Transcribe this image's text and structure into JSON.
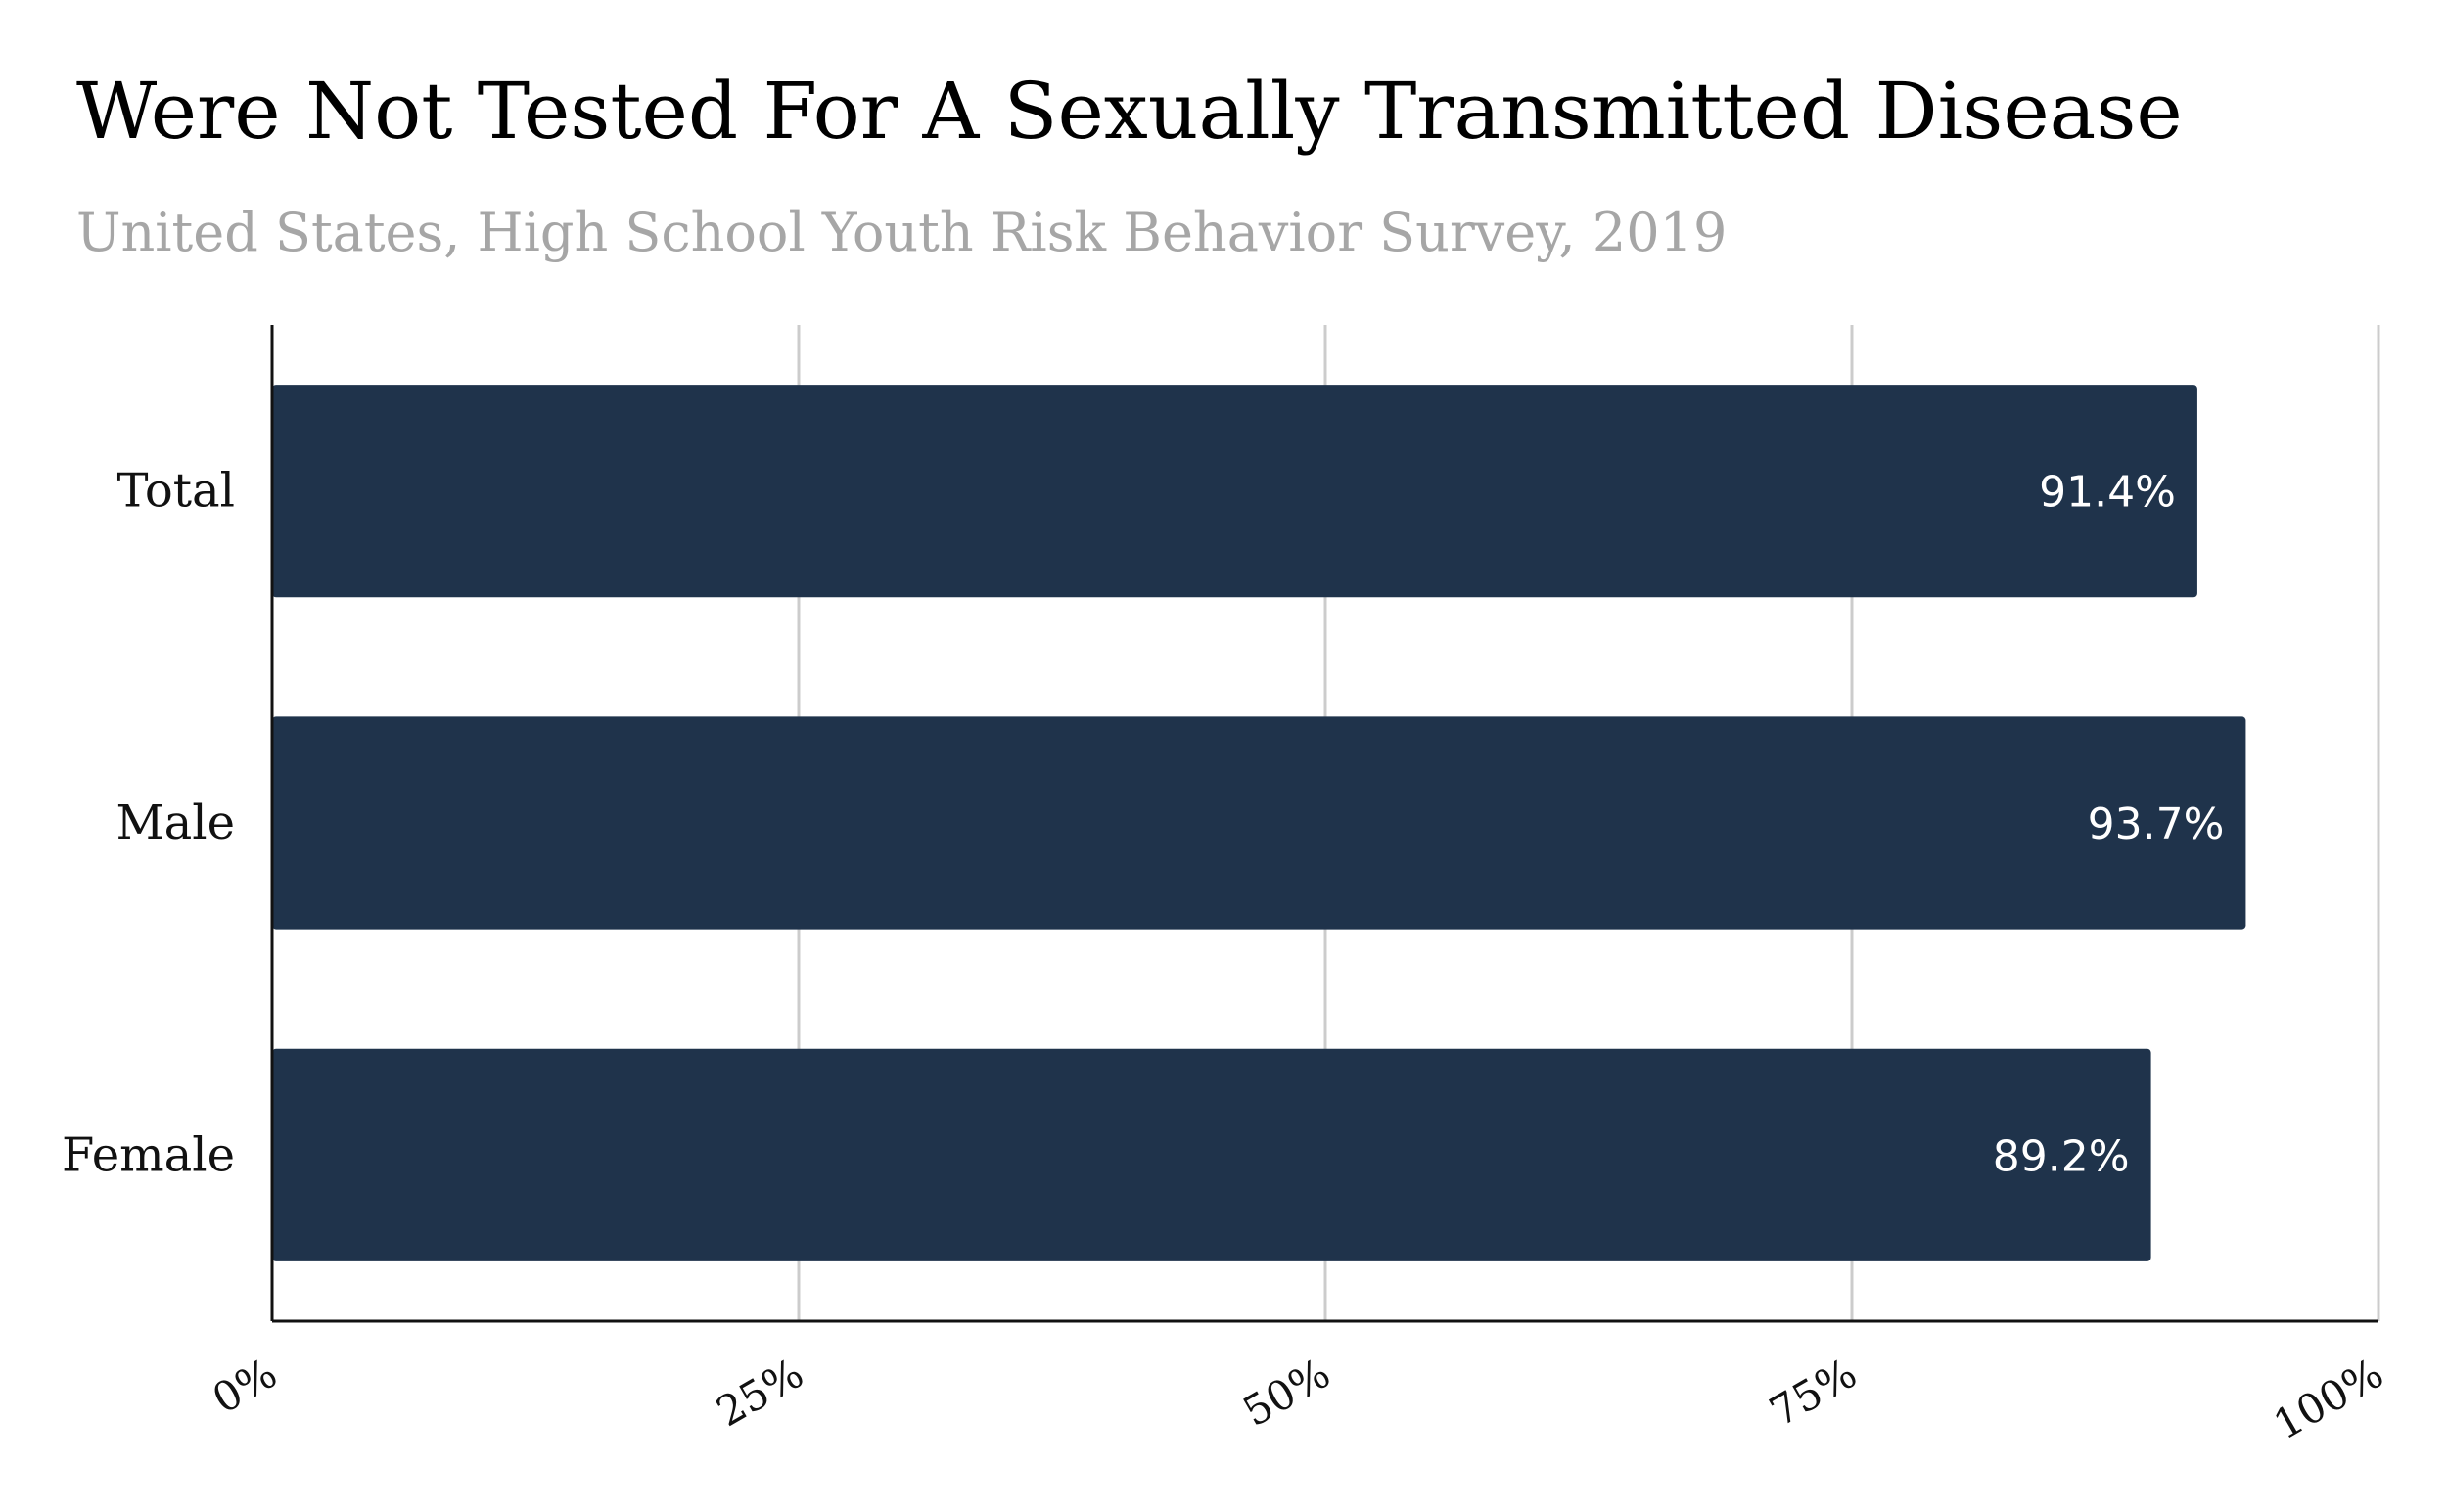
{
  "chart_data": {
    "type": "bar",
    "orientation": "horizontal",
    "title": "Were Not Tested For A Sexually Transmitted Disease",
    "subtitle": "United States, High School Youth Risk Behavior Survey, 2019",
    "categories": [
      "Total",
      "Male",
      "Female"
    ],
    "values": [
      91.4,
      93.7,
      89.2
    ],
    "data_labels": [
      "91.4%",
      "93.7%",
      "89.2%"
    ],
    "xlim": [
      0,
      100
    ],
    "x_ticks": [
      0,
      25,
      50,
      75,
      100
    ],
    "x_tick_labels": [
      "0%",
      "25%",
      "50%",
      "75%",
      "100%"
    ],
    "xlabel": "",
    "ylabel": "",
    "grid": "vertical",
    "legend": "none",
    "bar_color": "#1f334b",
    "grid_color": "#cccccc",
    "value_label_color": "#ffffff"
  }
}
